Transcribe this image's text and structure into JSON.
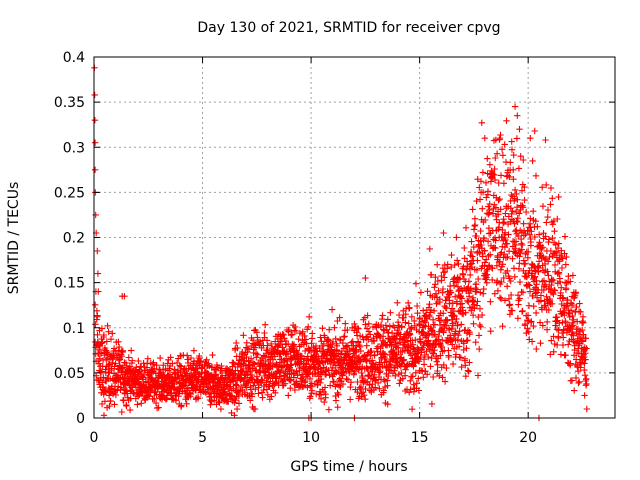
{
  "chart_data": {
    "type": "scatter",
    "title": "Day 130 of 2021, SRMTID for receiver cpvg",
    "xlabel": "GPS time / hours",
    "ylabel": "SRMTID / TECUs",
    "xlim": [
      0,
      24
    ],
    "ylim": [
      0,
      0.4
    ],
    "xticks": [
      0,
      5,
      10,
      15,
      20
    ],
    "xtick_labels": [
      "0",
      "5",
      "10",
      "15",
      "20"
    ],
    "yticks": [
      0,
      0.05,
      0.1,
      0.15,
      0.2,
      0.25,
      0.3,
      0.35,
      0.4
    ],
    "ytick_labels": [
      "0",
      "0.05",
      "0.1",
      "0.15",
      "0.2",
      "0.25",
      "0.3",
      "0.35",
      "0.4"
    ],
    "grid": true,
    "marker": "plus",
    "color": "#ff0000",
    "trend_profile": {
      "hours": [
        0,
        0.3,
        1,
        2,
        3,
        4,
        5,
        6,
        6.5,
        7,
        8,
        9,
        10,
        11,
        12,
        13,
        14,
        15,
        15.5,
        16,
        17,
        17.5,
        18,
        18.5,
        19,
        19.5,
        20,
        20.5,
        21,
        21.5,
        22,
        22.5,
        22.7
      ],
      "center": [
        0.1,
        0.06,
        0.05,
        0.04,
        0.038,
        0.04,
        0.042,
        0.035,
        0.04,
        0.055,
        0.06,
        0.065,
        0.06,
        0.062,
        0.065,
        0.07,
        0.072,
        0.075,
        0.1,
        0.11,
        0.12,
        0.15,
        0.2,
        0.22,
        0.22,
        0.2,
        0.17,
        0.16,
        0.17,
        0.14,
        0.1,
        0.08,
        0.05
      ],
      "spread": [
        0.02,
        0.025,
        0.02,
        0.012,
        0.012,
        0.015,
        0.015,
        0.012,
        0.02,
        0.02,
        0.022,
        0.022,
        0.022,
        0.022,
        0.022,
        0.025,
        0.025,
        0.03,
        0.035,
        0.035,
        0.045,
        0.05,
        0.06,
        0.06,
        0.06,
        0.055,
        0.05,
        0.05,
        0.05,
        0.04,
        0.035,
        0.03,
        0.02
      ]
    },
    "notable_points": [
      {
        "x": 0.02,
        "y": 0.388
      },
      {
        "x": 0.03,
        "y": 0.358
      },
      {
        "x": 0.04,
        "y": 0.33
      },
      {
        "x": 0.05,
        "y": 0.305
      },
      {
        "x": 0.05,
        "y": 0.275
      },
      {
        "x": 0.06,
        "y": 0.25
      },
      {
        "x": 0.08,
        "y": 0.225
      },
      {
        "x": 0.1,
        "y": 0.205
      },
      {
        "x": 0.15,
        "y": 0.185
      },
      {
        "x": 0.18,
        "y": 0.16
      },
      {
        "x": 0.2,
        "y": 0.14
      },
      {
        "x": 1.4,
        "y": 0.135
      },
      {
        "x": 1.3,
        "y": 0.135
      },
      {
        "x": 19.4,
        "y": 0.345
      },
      {
        "x": 19.5,
        "y": 0.335
      },
      {
        "x": 19.6,
        "y": 0.32
      },
      {
        "x": 20.3,
        "y": 0.318
      },
      {
        "x": 20.1,
        "y": 0.31
      },
      {
        "x": 20.8,
        "y": 0.308
      },
      {
        "x": 18.0,
        "y": 0.31
      },
      {
        "x": 18.7,
        "y": 0.31
      },
      {
        "x": 16.1,
        "y": 0.205
      },
      {
        "x": 12.5,
        "y": 0.155
      },
      {
        "x": 21.4,
        "y": 0.245
      },
      {
        "x": 9.9,
        "y": 0.0
      },
      {
        "x": 10.0,
        "y": 0.0
      },
      {
        "x": 12.0,
        "y": 0.0
      },
      {
        "x": 20.5,
        "y": 0.0
      },
      {
        "x": 22.7,
        "y": 0.01
      },
      {
        "x": 22.6,
        "y": 0.025
      }
    ]
  }
}
